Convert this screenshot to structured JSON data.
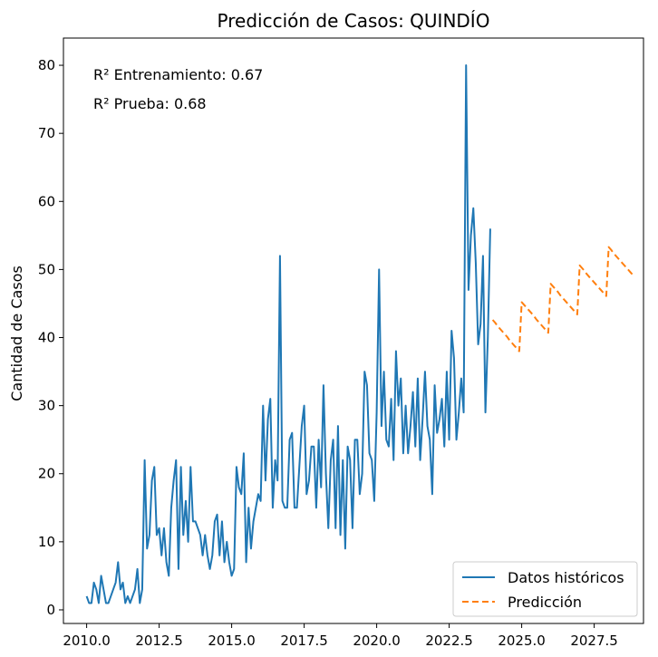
{
  "chart_data": {
    "type": "line",
    "title": "Predicción de Casos: QUINDÍO",
    "xlabel": "",
    "ylabel": "Cantidad de Casos",
    "xlim": [
      2009.2,
      2029.2
    ],
    "ylim": [
      -2,
      84
    ],
    "x_ticks": [
      2010.0,
      2012.5,
      2015.0,
      2017.5,
      2020.0,
      2022.5,
      2025.0,
      2027.5
    ],
    "x_tick_labels": [
      "2010.0",
      "2012.5",
      "2015.0",
      "2017.5",
      "2020.0",
      "2022.5",
      "2025.0",
      "2027.5"
    ],
    "y_ticks": [
      0,
      10,
      20,
      30,
      40,
      50,
      60,
      70,
      80
    ],
    "y_tick_labels": [
      "0",
      "10",
      "20",
      "30",
      "40",
      "50",
      "60",
      "70",
      "80"
    ],
    "grid": false,
    "legend_position": "lower-right",
    "annotations": [
      "R² Entrenamiento: 0.67",
      "R² Prueba: 0.68"
    ],
    "series": [
      {
        "name": "Datos históricos",
        "color": "#1f77b4",
        "style": "solid",
        "x_start": 2010.0,
        "x_step": 0.08333,
        "values": [
          2,
          1,
          1,
          4,
          3,
          1,
          5,
          3,
          1,
          1,
          2,
          3,
          4,
          7,
          3,
          4,
          1,
          2,
          1,
          2,
          3,
          6,
          1,
          3,
          22,
          9,
          11,
          19,
          21,
          11,
          12,
          8,
          12,
          7,
          5,
          15,
          19,
          22,
          6,
          21,
          11,
          16,
          10,
          21,
          13,
          13,
          12,
          11,
          8,
          11,
          8,
          6,
          8,
          13,
          14,
          8,
          13,
          7,
          10,
          7,
          5,
          6,
          21,
          18,
          17,
          23,
          7,
          15,
          9,
          13,
          15,
          17,
          16,
          30,
          19,
          28,
          31,
          15,
          22,
          19,
          52,
          16,
          15,
          15,
          25,
          26,
          15,
          15,
          21,
          27,
          30,
          17,
          19,
          24,
          24,
          15,
          25,
          18,
          33,
          20,
          12,
          22,
          25,
          12,
          27,
          11,
          22,
          9,
          24,
          22,
          12,
          25,
          25,
          17,
          20,
          35,
          33,
          23,
          22,
          16,
          29,
          50,
          27,
          35,
          25,
          24,
          31,
          22,
          38,
          30,
          34,
          23,
          30,
          23,
          27,
          32,
          24,
          34,
          22,
          28,
          35,
          27,
          25,
          17,
          33,
          26,
          28,
          31,
          24,
          35,
          25,
          41,
          37,
          25,
          29,
          34,
          29,
          80,
          47,
          55,
          59,
          51,
          39,
          42,
          52,
          29,
          40,
          56
        ]
      },
      {
        "name": "Predicción",
        "color": "#ff7f0e",
        "style": "dashed",
        "x_start": 2024.0,
        "x_step": 0.08333,
        "values": [
          42.6,
          42.2,
          41.7,
          41.3,
          40.9,
          40.5,
          40.1,
          39.6,
          39.2,
          38.8,
          38.4,
          38.0,
          45.2,
          44.8,
          44.4,
          44.0,
          43.6,
          43.2,
          42.7,
          42.3,
          41.9,
          41.5,
          41.1,
          40.7,
          47.9,
          47.5,
          47.1,
          46.7,
          46.2,
          45.8,
          45.4,
          45.0,
          44.6,
          44.2,
          43.8,
          43.4,
          50.6,
          50.2,
          49.8,
          49.3,
          48.9,
          48.5,
          48.1,
          47.7,
          47.3,
          46.9,
          46.5,
          46.1,
          53.3,
          52.9,
          52.4,
          52.0,
          51.6,
          51.2,
          50.8,
          50.4,
          50.0,
          49.6,
          49.2
        ]
      }
    ]
  }
}
